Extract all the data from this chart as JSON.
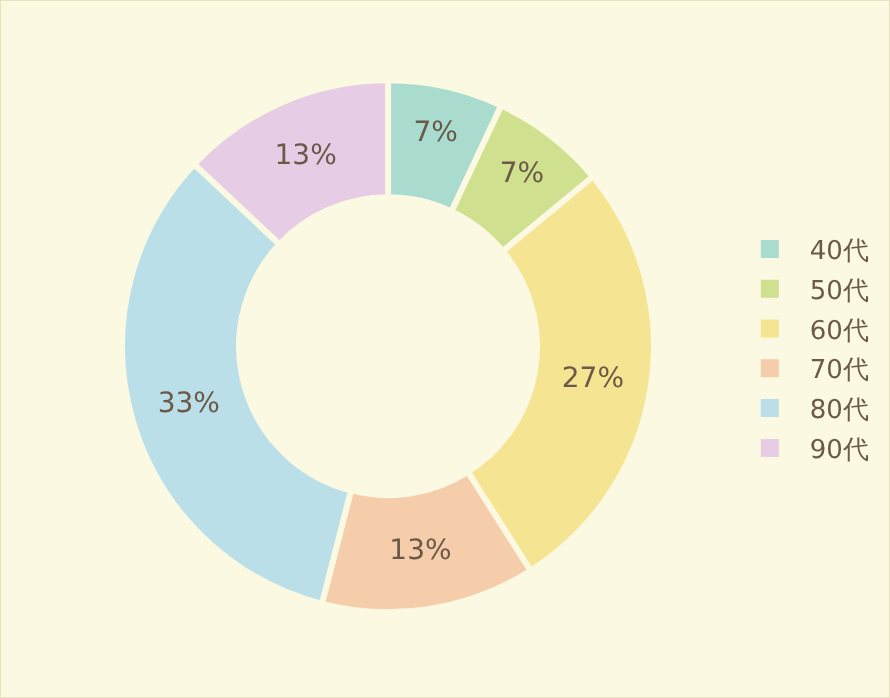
{
  "chart_data": {
    "type": "donut",
    "categories": [
      "40代",
      "50代",
      "60代",
      "70代",
      "80代",
      "90代"
    ],
    "values": [
      7,
      7,
      27,
      13,
      33,
      13
    ],
    "value_labels": [
      "7%",
      "7%",
      "27%",
      "13%",
      "33%",
      "13%"
    ],
    "colors": [
      "#a9dccf",
      "#cfe08f",
      "#f5e492",
      "#f5cdaa",
      "#badfe9",
      "#e6cce5"
    ],
    "legend": "right"
  }
}
